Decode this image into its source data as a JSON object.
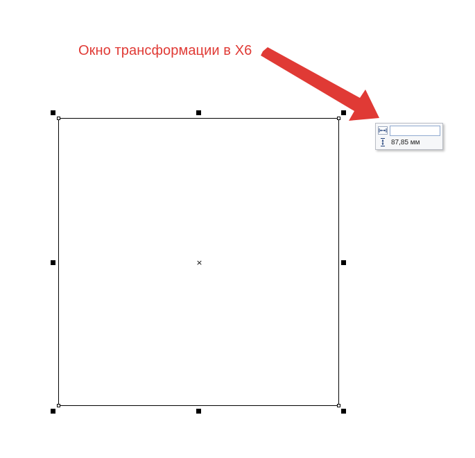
{
  "annotation": {
    "text": "Окно трансформации в X6",
    "color": "#e03a35"
  },
  "canvas": {
    "center_mark": "×",
    "selection_color": "#000000"
  },
  "transform_popup": {
    "width_icon": "horizontal-dimension-icon",
    "height_icon": "vertical-dimension-icon",
    "width_value": "",
    "height_value": "87,85 мм",
    "field_border_color": "#8fa9cf"
  }
}
